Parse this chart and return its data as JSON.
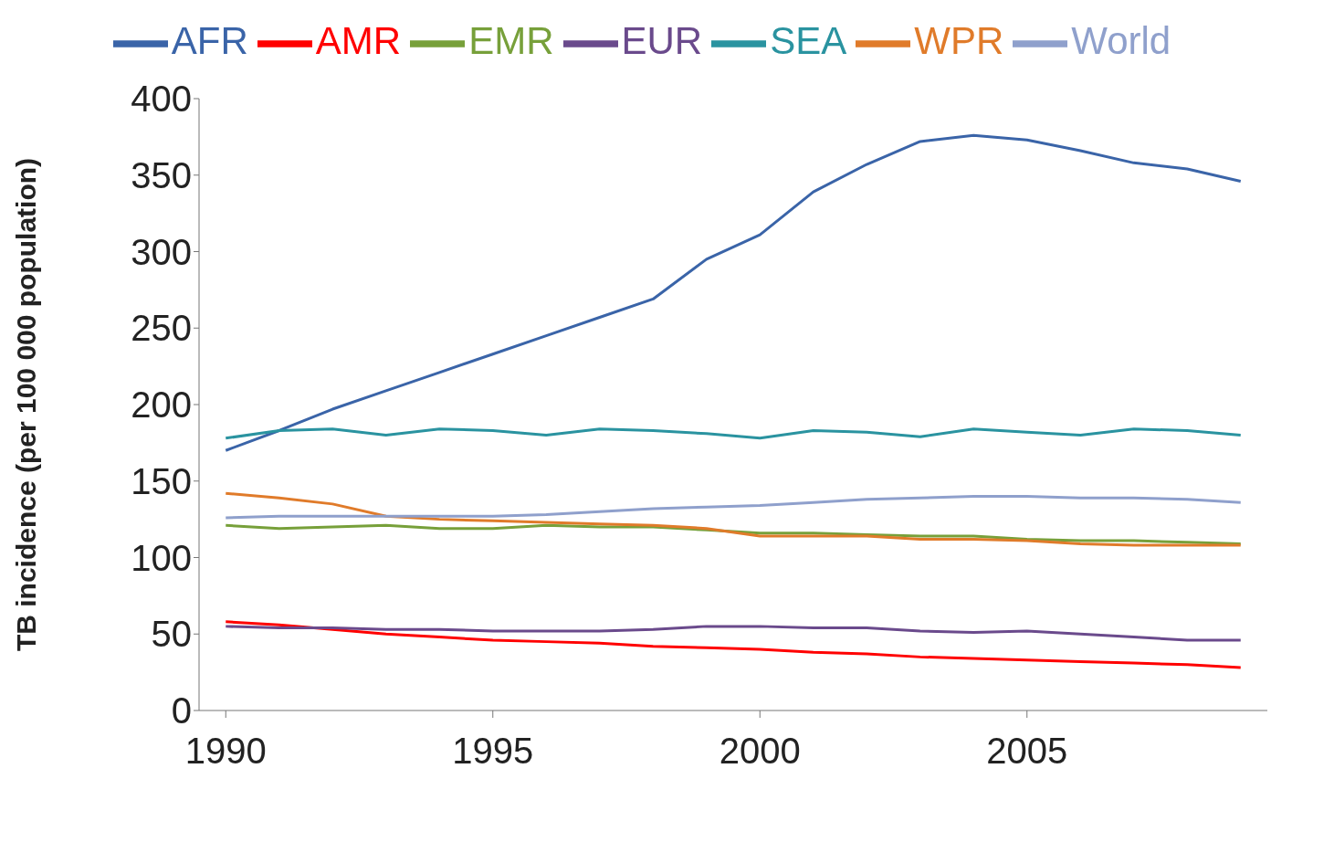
{
  "chart_data": {
    "type": "line",
    "ylabel": "TB incidence (per 100 000 population)",
    "x": [
      1990,
      1991,
      1992,
      1993,
      1994,
      1995,
      1996,
      1997,
      1998,
      1999,
      2000,
      2001,
      2002,
      2003,
      2004,
      2005,
      2006,
      2007,
      2008,
      2009
    ],
    "xlim": [
      1989.5,
      2009.5
    ],
    "xticks": [
      1990,
      1995,
      2000,
      2005
    ],
    "ylim": [
      0,
      400
    ],
    "yticks": [
      0,
      50,
      100,
      150,
      200,
      250,
      300,
      350,
      400
    ],
    "legend": "top",
    "marker": "none",
    "line_style": "solid",
    "series": [
      {
        "name": "AFR",
        "color": "#3a64a8",
        "values": [
          170,
          183,
          197,
          209,
          221,
          233,
          245,
          257,
          269,
          295,
          311,
          339,
          357,
          372,
          376,
          373,
          366,
          358,
          354,
          346
        ]
      },
      {
        "name": "AMR",
        "color": "#ff0000",
        "values": [
          58,
          56,
          53,
          50,
          48,
          46,
          45,
          44,
          42,
          41,
          40,
          38,
          37,
          35,
          34,
          33,
          32,
          31,
          30,
          28
        ]
      },
      {
        "name": "EMR",
        "color": "#77a03a",
        "values": [
          121,
          119,
          120,
          121,
          119,
          119,
          121,
          120,
          120,
          118,
          116,
          116,
          115,
          114,
          114,
          112,
          111,
          111,
          110,
          109
        ]
      },
      {
        "name": "EUR",
        "color": "#6a4a8c",
        "values": [
          55,
          54,
          54,
          53,
          53,
          52,
          52,
          52,
          53,
          55,
          55,
          54,
          54,
          52,
          51,
          52,
          50,
          48,
          46,
          46
        ]
      },
      {
        "name": "SEA",
        "color": "#2a93a0",
        "values": [
          178,
          183,
          184,
          180,
          184,
          183,
          180,
          184,
          183,
          181,
          178,
          183,
          182,
          179,
          184,
          182,
          180,
          184,
          183,
          180
        ]
      },
      {
        "name": "WPR",
        "color": "#e07b2a",
        "values": [
          142,
          139,
          135,
          127,
          125,
          124,
          123,
          122,
          121,
          119,
          114,
          114,
          114,
          112,
          112,
          111,
          109,
          108,
          108,
          108
        ]
      },
      {
        "name": "World",
        "color": "#8fa0cc",
        "values": [
          126,
          127,
          127,
          127,
          127,
          127,
          128,
          130,
          132,
          133,
          134,
          136,
          138,
          139,
          140,
          140,
          139,
          139,
          138,
          136
        ]
      }
    ]
  }
}
